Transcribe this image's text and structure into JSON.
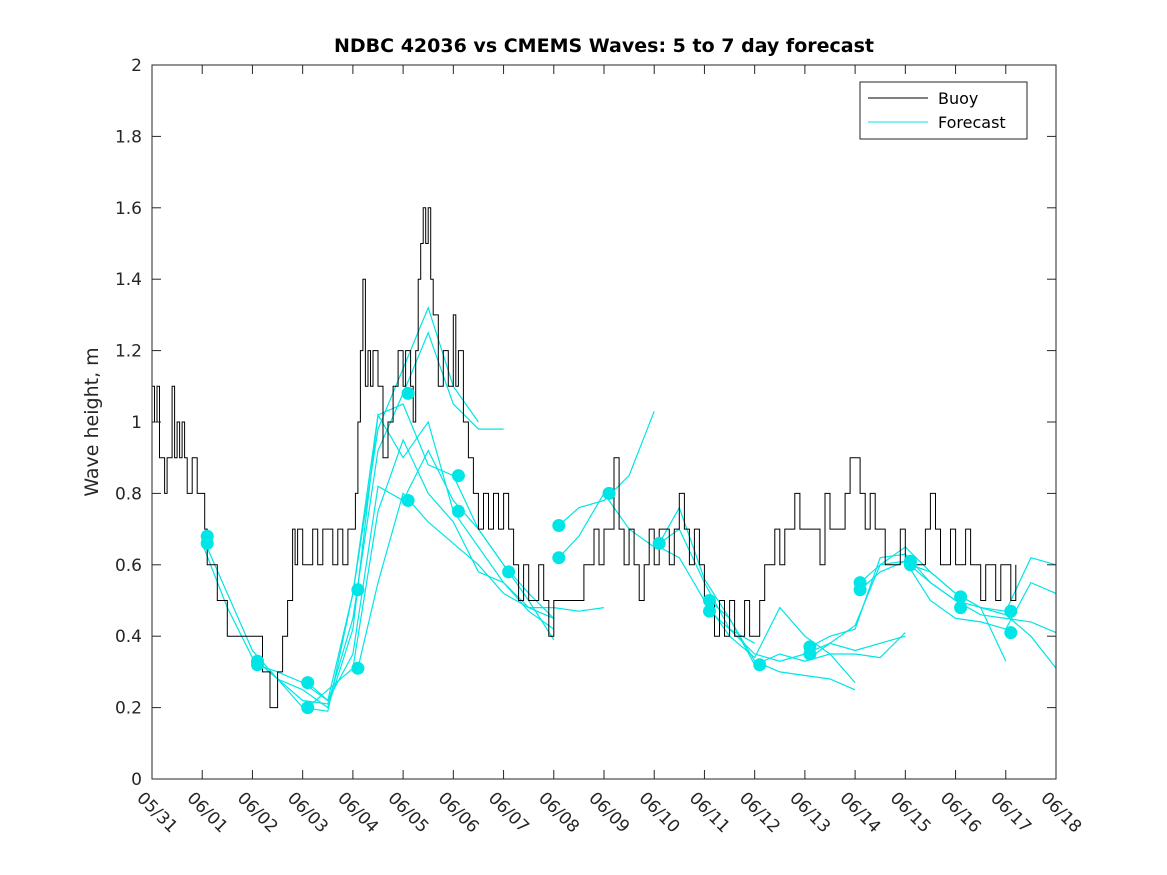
{
  "chart_data": {
    "type": "line",
    "title": "NDBC 42036 vs CMEMS Waves: 5 to 7 day forecast",
    "xlabel": "",
    "ylabel": "Wave height, m",
    "xlim": [
      0,
      18
    ],
    "ylim": [
      0,
      2
    ],
    "yticks": [
      "0",
      "0.2",
      "0.4",
      "0.6",
      "0.8",
      "1",
      "1.2",
      "1.4",
      "1.6",
      "1.8",
      "2"
    ],
    "xticks": [
      "05/31",
      "06/01",
      "06/02",
      "06/03",
      "06/04",
      "06/05",
      "06/06",
      "06/07",
      "06/08",
      "06/09",
      "06/10",
      "06/11",
      "06/12",
      "06/13",
      "06/14",
      "06/15",
      "06/16",
      "06/17",
      "06/18"
    ],
    "colors": {
      "buoy": "#000000",
      "forecast": "#00e5e5"
    },
    "legend": {
      "position": "top-right",
      "entries": [
        "Buoy",
        "Forecast"
      ]
    },
    "buoy": [
      [
        0,
        1.1
      ],
      [
        0.05,
        1.0
      ],
      [
        0.1,
        1.1
      ],
      [
        0.15,
        0.9
      ],
      [
        0.2,
        0.9
      ],
      [
        0.25,
        0.8
      ],
      [
        0.3,
        0.9
      ],
      [
        0.35,
        0.9
      ],
      [
        0.4,
        1.1
      ],
      [
        0.45,
        0.9
      ],
      [
        0.5,
        1.0
      ],
      [
        0.55,
        0.9
      ],
      [
        0.6,
        1.0
      ],
      [
        0.65,
        0.9
      ],
      [
        0.7,
        0.8
      ],
      [
        0.8,
        0.9
      ],
      [
        0.9,
        0.8
      ],
      [
        1.0,
        0.8
      ],
      [
        1.05,
        0.7
      ],
      [
        1.1,
        0.6
      ],
      [
        1.2,
        0.6
      ],
      [
        1.3,
        0.5
      ],
      [
        1.4,
        0.5
      ],
      [
        1.5,
        0.4
      ],
      [
        1.7,
        0.4
      ],
      [
        1.9,
        0.4
      ],
      [
        2.1,
        0.4
      ],
      [
        2.2,
        0.3
      ],
      [
        2.3,
        0.3
      ],
      [
        2.35,
        0.2
      ],
      [
        2.45,
        0.2
      ],
      [
        2.5,
        0.3
      ],
      [
        2.6,
        0.4
      ],
      [
        2.7,
        0.5
      ],
      [
        2.8,
        0.7
      ],
      [
        2.85,
        0.6
      ],
      [
        2.9,
        0.7
      ],
      [
        3.0,
        0.6
      ],
      [
        3.1,
        0.6
      ],
      [
        3.2,
        0.7
      ],
      [
        3.3,
        0.6
      ],
      [
        3.4,
        0.7
      ],
      [
        3.5,
        0.7
      ],
      [
        3.6,
        0.6
      ],
      [
        3.7,
        0.7
      ],
      [
        3.8,
        0.6
      ],
      [
        3.9,
        0.7
      ],
      [
        4.0,
        0.7
      ],
      [
        4.05,
        0.8
      ],
      [
        4.1,
        1.0
      ],
      [
        4.15,
        1.2
      ],
      [
        4.2,
        1.4
      ],
      [
        4.25,
        1.1
      ],
      [
        4.3,
        1.2
      ],
      [
        4.35,
        1.1
      ],
      [
        4.4,
        1.2
      ],
      [
        4.5,
        1.1
      ],
      [
        4.6,
        0.9
      ],
      [
        4.7,
        1.0
      ],
      [
        4.8,
        1.1
      ],
      [
        4.9,
        1.2
      ],
      [
        5.0,
        1.1
      ],
      [
        5.05,
        1.2
      ],
      [
        5.1,
        1.2
      ],
      [
        5.15,
        1.1
      ],
      [
        5.2,
        1.0
      ],
      [
        5.25,
        1.2
      ],
      [
        5.3,
        1.4
      ],
      [
        5.35,
        1.5
      ],
      [
        5.4,
        1.6
      ],
      [
        5.45,
        1.5
      ],
      [
        5.5,
        1.6
      ],
      [
        5.55,
        1.4
      ],
      [
        5.6,
        1.3
      ],
      [
        5.7,
        1.1
      ],
      [
        5.8,
        1.2
      ],
      [
        5.9,
        1.1
      ],
      [
        6.0,
        1.3
      ],
      [
        6.05,
        1.1
      ],
      [
        6.1,
        1.2
      ],
      [
        6.2,
        1.0
      ],
      [
        6.3,
        0.9
      ],
      [
        6.4,
        0.8
      ],
      [
        6.5,
        0.7
      ],
      [
        6.6,
        0.8
      ],
      [
        6.7,
        0.7
      ],
      [
        6.8,
        0.8
      ],
      [
        6.9,
        0.7
      ],
      [
        7.0,
        0.8
      ],
      [
        7.1,
        0.7
      ],
      [
        7.2,
        0.6
      ],
      [
        7.3,
        0.5
      ],
      [
        7.4,
        0.6
      ],
      [
        7.5,
        0.5
      ],
      [
        7.6,
        0.5
      ],
      [
        7.7,
        0.6
      ],
      [
        7.8,
        0.5
      ],
      [
        7.9,
        0.4
      ],
      [
        8.0,
        0.5
      ],
      [
        8.2,
        0.5
      ],
      [
        8.4,
        0.5
      ],
      [
        8.6,
        0.6
      ],
      [
        8.7,
        0.6
      ],
      [
        8.8,
        0.7
      ],
      [
        8.9,
        0.6
      ],
      [
        9.0,
        0.7
      ],
      [
        9.1,
        0.7
      ],
      [
        9.2,
        0.9
      ],
      [
        9.3,
        0.7
      ],
      [
        9.4,
        0.6
      ],
      [
        9.5,
        0.7
      ],
      [
        9.6,
        0.6
      ],
      [
        9.7,
        0.5
      ],
      [
        9.8,
        0.6
      ],
      [
        9.9,
        0.7
      ],
      [
        10.0,
        0.6
      ],
      [
        10.1,
        0.7
      ],
      [
        10.2,
        0.7
      ],
      [
        10.3,
        0.6
      ],
      [
        10.4,
        0.7
      ],
      [
        10.5,
        0.8
      ],
      [
        10.6,
        0.7
      ],
      [
        10.7,
        0.6
      ],
      [
        10.8,
        0.7
      ],
      [
        10.9,
        0.6
      ],
      [
        11.0,
        0.5
      ],
      [
        11.1,
        0.5
      ],
      [
        11.2,
        0.4
      ],
      [
        11.3,
        0.5
      ],
      [
        11.4,
        0.4
      ],
      [
        11.5,
        0.5
      ],
      [
        11.6,
        0.4
      ],
      [
        11.7,
        0.4
      ],
      [
        11.8,
        0.5
      ],
      [
        11.9,
        0.4
      ],
      [
        12.0,
        0.4
      ],
      [
        12.1,
        0.5
      ],
      [
        12.2,
        0.6
      ],
      [
        12.3,
        0.6
      ],
      [
        12.4,
        0.7
      ],
      [
        12.5,
        0.6
      ],
      [
        12.6,
        0.7
      ],
      [
        12.7,
        0.7
      ],
      [
        12.8,
        0.8
      ],
      [
        12.9,
        0.7
      ],
      [
        13.0,
        0.7
      ],
      [
        13.1,
        0.7
      ],
      [
        13.2,
        0.7
      ],
      [
        13.3,
        0.6
      ],
      [
        13.4,
        0.8
      ],
      [
        13.5,
        0.7
      ],
      [
        13.6,
        0.7
      ],
      [
        13.7,
        0.7
      ],
      [
        13.8,
        0.8
      ],
      [
        13.9,
        0.9
      ],
      [
        14.0,
        0.9
      ],
      [
        14.1,
        0.8
      ],
      [
        14.2,
        0.7
      ],
      [
        14.3,
        0.8
      ],
      [
        14.4,
        0.7
      ],
      [
        14.5,
        0.7
      ],
      [
        14.6,
        0.6
      ],
      [
        14.7,
        0.6
      ],
      [
        14.8,
        0.6
      ],
      [
        14.9,
        0.7
      ],
      [
        15.0,
        0.6
      ],
      [
        15.1,
        0.6
      ],
      [
        15.2,
        0.6
      ],
      [
        15.3,
        0.6
      ],
      [
        15.4,
        0.7
      ],
      [
        15.5,
        0.8
      ],
      [
        15.6,
        0.7
      ],
      [
        15.7,
        0.6
      ],
      [
        15.8,
        0.6
      ],
      [
        15.9,
        0.7
      ],
      [
        16.0,
        0.6
      ],
      [
        16.1,
        0.6
      ],
      [
        16.2,
        0.7
      ],
      [
        16.3,
        0.6
      ],
      [
        16.4,
        0.6
      ],
      [
        16.5,
        0.5
      ],
      [
        16.6,
        0.6
      ],
      [
        16.7,
        0.6
      ],
      [
        16.8,
        0.5
      ],
      [
        16.9,
        0.6
      ],
      [
        17.0,
        0.6
      ],
      [
        17.1,
        0.5
      ],
      [
        17.2,
        0.6
      ]
    ],
    "forecast_runs": [
      [
        [
          1.0,
          0.68
        ],
        [
          1.5,
          0.52
        ],
        [
          2.0,
          0.36
        ],
        [
          2.5,
          0.28
        ],
        [
          3.0,
          0.22
        ],
        [
          3.5,
          0.21
        ],
        [
          4.0,
          0.45
        ],
        [
          4.5,
          0.92
        ],
        [
          5.0,
          1.08
        ],
        [
          5.5,
          1.25
        ],
        [
          6.0,
          1.05
        ],
        [
          6.5,
          0.98
        ],
        [
          7.0,
          0.98
        ]
      ],
      [
        [
          1.0,
          0.66
        ],
        [
          1.5,
          0.48
        ],
        [
          2.0,
          0.34
        ],
        [
          2.5,
          0.28
        ],
        [
          3.0,
          0.2
        ],
        [
          3.5,
          0.19
        ],
        [
          4.0,
          0.52
        ],
        [
          4.5,
          0.98
        ],
        [
          5.0,
          1.15
        ],
        [
          5.5,
          1.32
        ],
        [
          6.0,
          1.1
        ],
        [
          6.5,
          1.0
        ]
      ],
      [
        [
          2.1,
          0.33
        ],
        [
          2.5,
          0.28
        ],
        [
          3.0,
          0.25
        ],
        [
          3.5,
          0.2
        ],
        [
          4.0,
          0.42
        ],
        [
          4.5,
          1.02
        ],
        [
          5.0,
          0.9
        ],
        [
          5.5,
          1.0
        ],
        [
          6.0,
          0.75
        ],
        [
          6.5,
          0.65
        ],
        [
          7.0,
          0.55
        ],
        [
          7.5,
          0.47
        ],
        [
          8.0,
          0.42
        ]
      ],
      [
        [
          2.1,
          0.32
        ],
        [
          2.5,
          0.3
        ],
        [
          3.0,
          0.27
        ],
        [
          3.5,
          0.22
        ],
        [
          4.0,
          0.35
        ],
        [
          4.5,
          0.82
        ],
        [
          5.0,
          0.78
        ],
        [
          5.5,
          0.92
        ],
        [
          6.0,
          0.78
        ],
        [
          6.5,
          0.7
        ],
        [
          7.0,
          0.6
        ],
        [
          7.5,
          0.5
        ],
        [
          8.0,
          0.39
        ]
      ],
      [
        [
          3.1,
          0.27
        ],
        [
          3.5,
          0.22
        ],
        [
          4.0,
          0.52
        ],
        [
          4.5,
          1.02
        ],
        [
          5.0,
          1.05
        ],
        [
          5.5,
          0.88
        ],
        [
          6.0,
          0.85
        ],
        [
          6.5,
          0.7
        ],
        [
          7.0,
          0.6
        ],
        [
          7.5,
          0.52
        ],
        [
          8.0,
          0.45
        ]
      ],
      [
        [
          3.1,
          0.2
        ],
        [
          3.5,
          0.25
        ],
        [
          4.0,
          0.31
        ],
        [
          4.5,
          0.75
        ],
        [
          5.0,
          0.95
        ],
        [
          5.5,
          0.8
        ],
        [
          6.0,
          0.72
        ],
        [
          6.5,
          0.58
        ],
        [
          7.0,
          0.55
        ],
        [
          7.5,
          0.48
        ],
        [
          8.0,
          0.45
        ]
      ],
      [
        [
          8.1,
          0.71
        ],
        [
          8.5,
          0.76
        ],
        [
          9.0,
          0.78
        ],
        [
          9.5,
          0.85
        ],
        [
          10.0,
          1.03
        ]
      ],
      [
        [
          8.1,
          0.62
        ],
        [
          8.5,
          0.68
        ],
        [
          9.0,
          0.8
        ],
        [
          9.5,
          0.7
        ],
        [
          10.0,
          0.65
        ],
        [
          10.5,
          0.7
        ],
        [
          11.0,
          0.55
        ],
        [
          11.5,
          0.42
        ],
        [
          12.0,
          0.38
        ]
      ],
      [
        [
          4.1,
          0.31
        ],
        [
          4.5,
          0.55
        ],
        [
          5.0,
          0.8
        ],
        [
          5.5,
          0.72
        ],
        [
          6.0,
          0.66
        ],
        [
          6.5,
          0.6
        ],
        [
          7.0,
          0.52
        ],
        [
          7.5,
          0.48
        ],
        [
          8.0,
          0.48
        ],
        [
          8.5,
          0.47
        ],
        [
          9.0,
          0.48
        ]
      ],
      [
        [
          10.1,
          0.66
        ],
        [
          10.5,
          0.76
        ],
        [
          11.0,
          0.56
        ],
        [
          11.5,
          0.45
        ],
        [
          12.0,
          0.33
        ],
        [
          12.5,
          0.3
        ],
        [
          13.0,
          0.29
        ],
        [
          13.5,
          0.28
        ],
        [
          14.0,
          0.25
        ]
      ],
      [
        [
          10.1,
          0.65
        ],
        [
          10.5,
          0.62
        ],
        [
          11.0,
          0.5
        ],
        [
          11.5,
          0.4
        ],
        [
          12.0,
          0.34
        ],
        [
          12.5,
          0.48
        ],
        [
          13.0,
          0.4
        ],
        [
          13.5,
          0.35
        ],
        [
          14.0,
          0.27
        ]
      ],
      [
        [
          11.1,
          0.5
        ],
        [
          11.5,
          0.45
        ],
        [
          12.0,
          0.32
        ],
        [
          12.5,
          0.35
        ],
        [
          13.0,
          0.33
        ],
        [
          13.5,
          0.35
        ],
        [
          14.0,
          0.35
        ],
        [
          14.5,
          0.34
        ],
        [
          15.0,
          0.41
        ]
      ],
      [
        [
          11.1,
          0.47
        ],
        [
          11.5,
          0.42
        ],
        [
          12.0,
          0.35
        ],
        [
          12.5,
          0.33
        ],
        [
          13.0,
          0.35
        ],
        [
          13.5,
          0.38
        ],
        [
          14.0,
          0.36
        ],
        [
          14.5,
          0.38
        ],
        [
          15.0,
          0.4
        ]
      ],
      [
        [
          13.1,
          0.37
        ],
        [
          13.5,
          0.4
        ],
        [
          14.0,
          0.42
        ],
        [
          14.5,
          0.62
        ],
        [
          15.0,
          0.63
        ],
        [
          15.5,
          0.55
        ],
        [
          16.0,
          0.5
        ],
        [
          16.5,
          0.48
        ],
        [
          17.0,
          0.33
        ]
      ],
      [
        [
          13.1,
          0.34
        ],
        [
          13.5,
          0.38
        ],
        [
          14.0,
          0.43
        ],
        [
          14.5,
          0.6
        ],
        [
          15.0,
          0.61
        ],
        [
          15.5,
          0.5
        ],
        [
          16.0,
          0.45
        ],
        [
          16.5,
          0.44
        ],
        [
          17.0,
          0.42
        ],
        [
          17.5,
          0.55
        ],
        [
          18.0,
          0.52
        ]
      ],
      [
        [
          14.1,
          0.55
        ],
        [
          14.5,
          0.6
        ],
        [
          15.0,
          0.65
        ],
        [
          15.5,
          0.58
        ],
        [
          16.0,
          0.52
        ],
        [
          16.5,
          0.48
        ],
        [
          17.0,
          0.46
        ],
        [
          17.5,
          0.4
        ],
        [
          18.0,
          0.31
        ]
      ],
      [
        [
          14.1,
          0.53
        ],
        [
          14.5,
          0.58
        ],
        [
          15.0,
          0.61
        ],
        [
          15.5,
          0.55
        ],
        [
          16.0,
          0.5
        ],
        [
          16.5,
          0.46
        ],
        [
          17.0,
          0.45
        ],
        [
          17.5,
          0.44
        ],
        [
          18.0,
          0.41
        ]
      ],
      [
        [
          15.1,
          0.6
        ],
        [
          15.5,
          0.58
        ],
        [
          16.0,
          0.52
        ],
        [
          16.5,
          0.48
        ],
        [
          17.0,
          0.47
        ],
        [
          17.5,
          0.62
        ],
        [
          18.0,
          0.6
        ]
      ]
    ],
    "forecast_points": [
      [
        1.1,
        0.68
      ],
      [
        1.1,
        0.66
      ],
      [
        2.1,
        0.33
      ],
      [
        2.1,
        0.32
      ],
      [
        3.1,
        0.27
      ],
      [
        3.1,
        0.2
      ],
      [
        4.1,
        0.53
      ],
      [
        4.1,
        0.31
      ],
      [
        5.1,
        1.08
      ],
      [
        5.1,
        0.78
      ],
      [
        6.1,
        0.85
      ],
      [
        6.1,
        0.75
      ],
      [
        7.1,
        0.58
      ],
      [
        8.1,
        0.71
      ],
      [
        8.1,
        0.62
      ],
      [
        9.1,
        0.8
      ],
      [
        10.1,
        0.66
      ],
      [
        11.1,
        0.5
      ],
      [
        11.1,
        0.47
      ],
      [
        12.1,
        0.32
      ],
      [
        13.1,
        0.37
      ],
      [
        13.1,
        0.35
      ],
      [
        14.1,
        0.55
      ],
      [
        14.1,
        0.53
      ],
      [
        15.1,
        0.61
      ],
      [
        15.1,
        0.6
      ],
      [
        16.1,
        0.51
      ],
      [
        16.1,
        0.48
      ],
      [
        17.1,
        0.47
      ],
      [
        17.1,
        0.41
      ]
    ]
  }
}
